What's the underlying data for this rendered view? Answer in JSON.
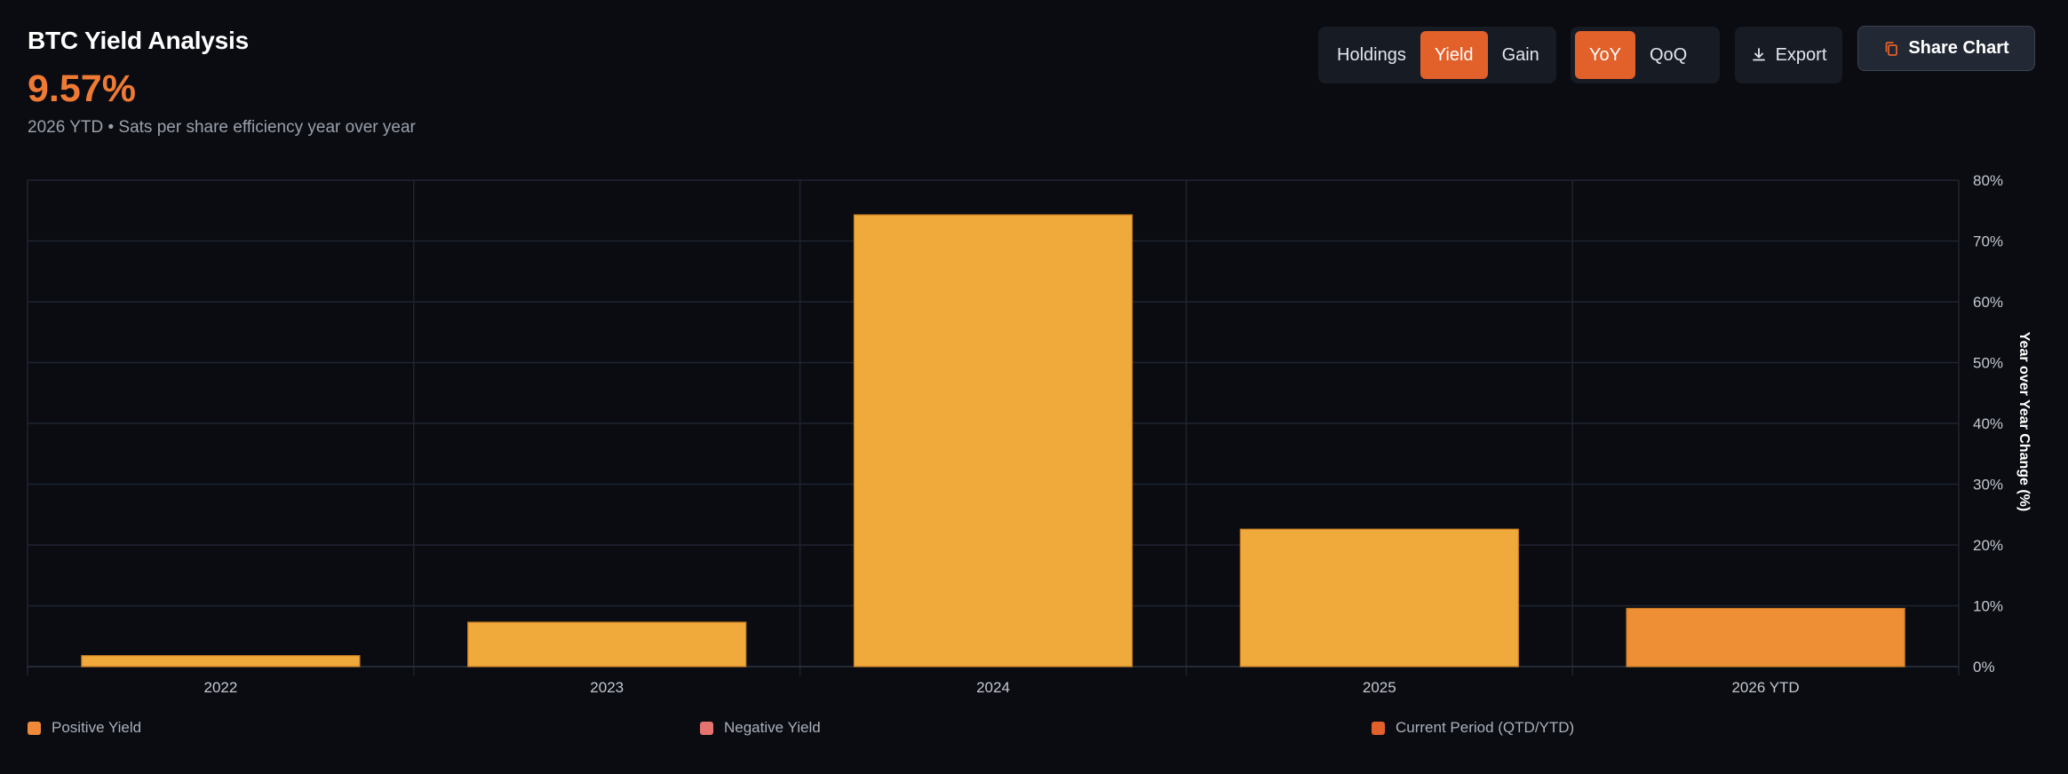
{
  "header": {
    "title": "BTC Yield Analysis",
    "headline_value": "9.57%",
    "subtitle": "2026 YTD • Sats per share efficiency year over year"
  },
  "metric_tabs": [
    {
      "label": "Holdings",
      "active": false
    },
    {
      "label": "Yield",
      "active": true
    },
    {
      "label": "Gain",
      "active": false
    }
  ],
  "period_tabs": [
    {
      "label": "YoY",
      "active": true
    },
    {
      "label": "QoQ",
      "active": false
    }
  ],
  "actions": {
    "export_label": "Export",
    "share_label": "Share Chart"
  },
  "icons": {
    "export": "download-icon",
    "share": "copy-icon"
  },
  "colors": {
    "accent": "#e2602a",
    "positive_bar": "#f0a93b",
    "current_bar": "#ef8f35",
    "negative": "#e5736f",
    "headline": "#ee7a34"
  },
  "legend": [
    {
      "label": "Positive Yield",
      "color": "#ee8a3a"
    },
    {
      "label": "Negative Yield",
      "color": "#e5736f"
    },
    {
      "label": "Current Period (QTD/YTD)",
      "color": "#e2602a"
    }
  ],
  "chart_data": {
    "type": "bar",
    "categories": [
      "2022",
      "2023",
      "2024",
      "2025",
      "2026 YTD"
    ],
    "values": [
      1.8,
      7.3,
      74.3,
      22.6,
      9.57
    ],
    "current_period": [
      false,
      false,
      false,
      false,
      true
    ],
    "ylabel": "Year over Year Change (%)",
    "ylim": [
      0,
      80
    ],
    "yticks": [
      0,
      10,
      20,
      30,
      40,
      50,
      60,
      70,
      80
    ],
    "ytick_labels": [
      "0%",
      "10%",
      "20%",
      "30%",
      "40%",
      "50%",
      "60%",
      "70%",
      "80%"
    ],
    "y_axis_side": "right",
    "grid": true
  }
}
